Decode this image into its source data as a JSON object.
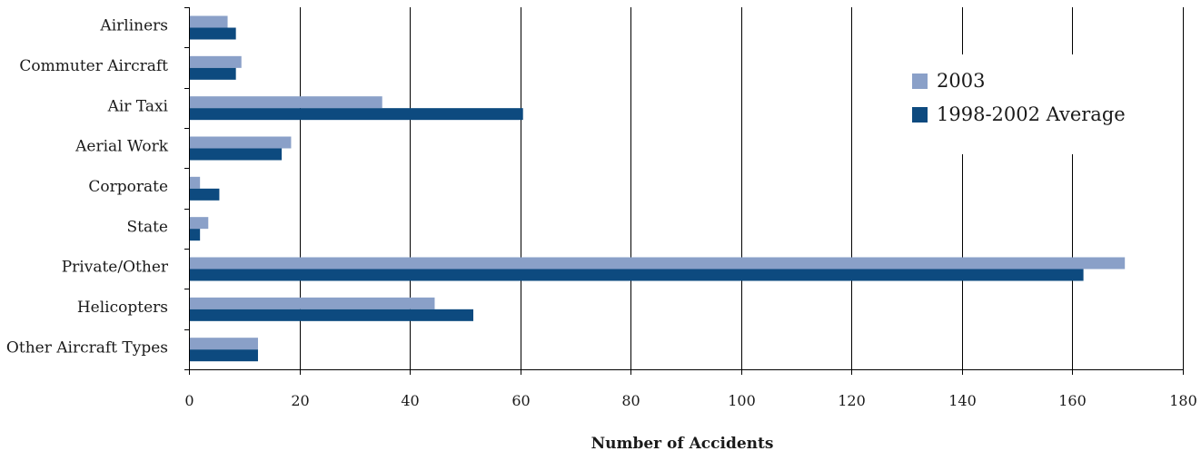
{
  "chart_data": {
    "type": "bar",
    "orientation": "horizontal",
    "categories": [
      "Airliners",
      "Commuter Aircraft",
      "Air Taxi",
      "Aerial Work",
      "Corporate",
      "State",
      "Private/Other",
      "Helicopters",
      "Other Aircraft Types"
    ],
    "series": [
      {
        "name": "2003",
        "color": "#8aa0c8",
        "values": [
          7,
          9.5,
          35,
          18.5,
          2,
          3.5,
          169.5,
          44.5,
          12.5
        ]
      },
      {
        "name": "1998-2002 Average",
        "color": "#0d4a7f",
        "values": [
          8.5,
          8.5,
          60.5,
          16.8,
          5.5,
          2,
          162,
          51.5,
          12.5
        ]
      }
    ],
    "title": "",
    "xlabel": "Number of Accidents",
    "ylabel": "",
    "xlim": [
      0,
      180
    ],
    "xticks": [
      0,
      20,
      40,
      60,
      80,
      100,
      120,
      140,
      160,
      180
    ],
    "grid": true,
    "legend_position": "top-right"
  }
}
